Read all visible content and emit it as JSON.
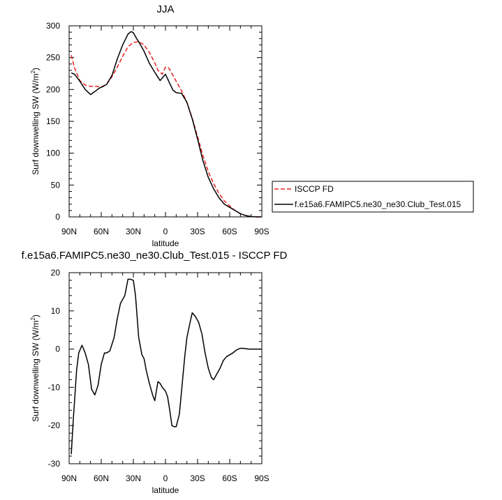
{
  "chart_data": [
    {
      "type": "line",
      "title": "JJA",
      "xlabel": "latitude",
      "ylabel": "Surf downwelling SW (W/m",
      "ylabel_sup": "2",
      "ylabel_close": ")",
      "xlim": [
        90,
        -90
      ],
      "ylim": [
        0,
        300
      ],
      "xticks": [
        90,
        60,
        30,
        0,
        -30,
        -60,
        -90
      ],
      "xtick_labels": [
        "90N",
        "60N",
        "30N",
        "0",
        "30S",
        "60S",
        "90S"
      ],
      "yticks": [
        0,
        50,
        100,
        150,
        200,
        250,
        300
      ],
      "ytick_labels": [
        "0",
        "50",
        "100",
        "150",
        "200",
        "250",
        "300"
      ],
      "legend_position": "right",
      "series": [
        {
          "name": "ISCCP FD",
          "color": "#e8211f",
          "dash": "dashed",
          "x": [
            88,
            85,
            80,
            75,
            70,
            65,
            60,
            55,
            50,
            45,
            40,
            35,
            30,
            25,
            20,
            15,
            10,
            7,
            3,
            0,
            -3,
            -7,
            -10,
            -15,
            -20,
            -25,
            -30,
            -35,
            -40,
            -45,
            -50,
            -55,
            -60,
            -65,
            -70,
            -75,
            -80,
            -85,
            -90
          ],
          "y": [
            254,
            234,
            214,
            207,
            205,
            205,
            204,
            208,
            220,
            235,
            252,
            267,
            274,
            275,
            270,
            258,
            242,
            230,
            224,
            235,
            234,
            222,
            213,
            198,
            180,
            155,
            126,
            96,
            71,
            52,
            37,
            25,
            17,
            10,
            5,
            2,
            0.5,
            0,
            0
          ]
        },
        {
          "name": "f.e15a6.FAMIPC5.ne30_ne30.Club_Test.015",
          "color": "#000000",
          "dash": "solid",
          "x": [
            88,
            85,
            80,
            75,
            70,
            65,
            62,
            58,
            55,
            50,
            45,
            40,
            35,
            32,
            30,
            27,
            25,
            20,
            15,
            10,
            5,
            0,
            -3,
            -7,
            -10,
            -15,
            -20,
            -25,
            -30,
            -35,
            -40,
            -45,
            -50,
            -55,
            -60,
            -65,
            -70,
            -75,
            -80,
            -85,
            -90
          ],
          "y": [
            226,
            224,
            213,
            200,
            192,
            198,
            202,
            205,
            208,
            222,
            248,
            270,
            287,
            291,
            289,
            280,
            275,
            260,
            241,
            227,
            214,
            224,
            213,
            199,
            195,
            194,
            180,
            154,
            122,
            88,
            62,
            44,
            30,
            20,
            15,
            10,
            5,
            2,
            0.5,
            0,
            0
          ]
        }
      ]
    },
    {
      "type": "line",
      "title": "f.e15a6.FAMIPC5.ne30_ne30.Club_Test.015 - ISCCP FD",
      "xlabel": "latitude",
      "ylabel": "Surf downwelling SW (W/m",
      "ylabel_sup": "2",
      "ylabel_close": ")",
      "xlim": [
        90,
        -90
      ],
      "ylim": [
        -30,
        20
      ],
      "xticks": [
        90,
        60,
        30,
        0,
        -30,
        -60,
        -90
      ],
      "xtick_labels": [
        "90N",
        "60N",
        "30N",
        "0",
        "30S",
        "60S",
        "90S"
      ],
      "yticks": [
        -30,
        -20,
        -10,
        0,
        10,
        20
      ],
      "ytick_labels": [
        "-30",
        "-20",
        "-10",
        "0",
        "10",
        "20"
      ],
      "series": [
        {
          "color": "#000000",
          "dash": "solid",
          "x": [
            88,
            86,
            83,
            81,
            78,
            75,
            72,
            69,
            66,
            63,
            60,
            57,
            55,
            52,
            48,
            45,
            42,
            38,
            35,
            33,
            30,
            28,
            25,
            22,
            20,
            18,
            15,
            12,
            10,
            7,
            5,
            3,
            0,
            -2,
            -4,
            -6,
            -8,
            -10,
            -13,
            -16,
            -18,
            -20,
            -23,
            -25,
            -28,
            -31,
            -34,
            -37,
            -40,
            -43,
            -45,
            -48,
            -51,
            -54,
            -57,
            -60,
            -63,
            -66,
            -68,
            -70,
            -72,
            -75,
            -78,
            -81,
            -84,
            -87,
            -90
          ],
          "y": [
            -27.5,
            -18,
            -5.5,
            -1,
            1,
            -1,
            -4,
            -10.5,
            -12,
            -9.5,
            -4,
            -1,
            -1,
            -0.5,
            3,
            8,
            12,
            14,
            18.3,
            18.3,
            18.0,
            14,
            3,
            -1.5,
            -2.5,
            -5.5,
            -9,
            -12,
            -13.5,
            -8.5,
            -9,
            -10,
            -11,
            -12.5,
            -16,
            -20,
            -20.3,
            -20.3,
            -17,
            -8,
            -2,
            3,
            7,
            9.5,
            8.5,
            7,
            4,
            -1,
            -5,
            -7.5,
            -8,
            -6.5,
            -5,
            -3,
            -2,
            -1.5,
            -1,
            -0.3,
            0,
            0.2,
            0.2,
            0.1,
            0,
            0,
            0,
            0,
            0
          ]
        }
      ]
    }
  ]
}
